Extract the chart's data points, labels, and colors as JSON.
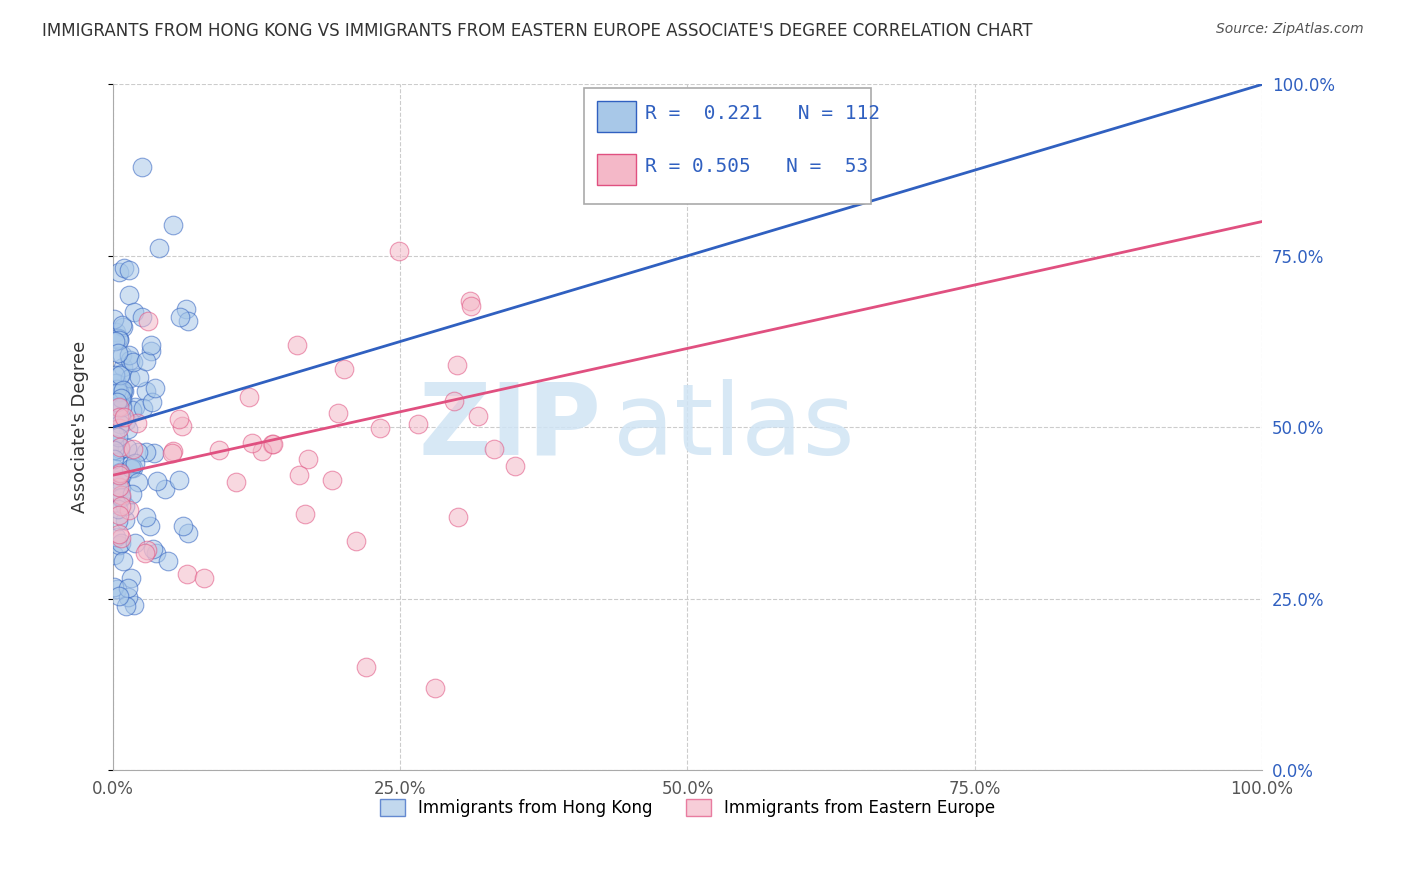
{
  "title": "IMMIGRANTS FROM HONG KONG VS IMMIGRANTS FROM EASTERN EUROPE ASSOCIATE'S DEGREE CORRELATION CHART",
  "source": "Source: ZipAtlas.com",
  "ylabel": "Associate's Degree",
  "legend_label1": "Immigrants from Hong Kong",
  "legend_label2": "Immigrants from Eastern Europe",
  "r1": 0.221,
  "n1": 112,
  "r2": 0.505,
  "n2": 53,
  "color_blue": "#a8c8e8",
  "color_pink": "#f4b8c8",
  "color_blue_line": "#3060c0",
  "color_pink_line": "#e05080",
  "watermark_zip": "ZIP",
  "watermark_atlas": "atlas",
  "xlim": [
    0.0,
    1.0
  ],
  "ylim": [
    0.0,
    1.0
  ],
  "ytick_vals": [
    0.0,
    0.25,
    0.5,
    0.75,
    1.0
  ],
  "ytick_labels": [
    "0.0%",
    "25.0%",
    "50.0%",
    "75.0%",
    "100.0%"
  ],
  "xtick_vals": [
    0.0,
    0.25,
    0.5,
    0.75,
    1.0
  ],
  "xtick_labels": [
    "0.0%",
    "25.0%",
    "50.0%",
    "75.0%",
    "100.0%"
  ],
  "blue_line_x0": 0.0,
  "blue_line_y0": 0.5,
  "blue_line_x1": 1.0,
  "blue_line_y1": 1.0,
  "pink_line_x0": 0.0,
  "pink_line_y0": 0.43,
  "pink_line_x1": 1.0,
  "pink_line_y1": 0.8
}
